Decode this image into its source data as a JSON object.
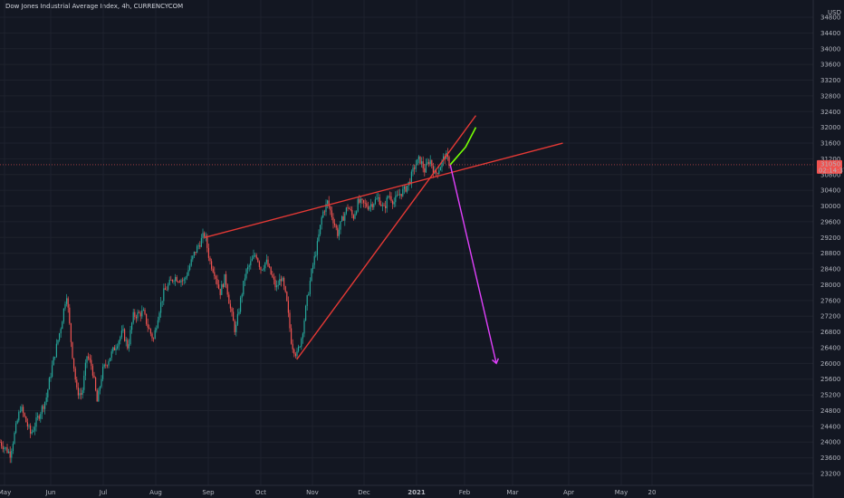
{
  "chart_data": {
    "type": "candlestick",
    "title": "Dow Jones Industrial Average Index, 4h, CURRENCYCOM",
    "currency": "USD",
    "y_ticks": [
      23200,
      23600,
      24000,
      24400,
      24800,
      25200,
      25600,
      26000,
      26400,
      26800,
      27200,
      27600,
      28000,
      28400,
      28800,
      29200,
      29600,
      30000,
      30400,
      30800,
      31200,
      31600,
      32000,
      32400,
      32800,
      33200,
      33600,
      34000,
      34400,
      34800
    ],
    "y_tick_labels": [
      "23200",
      "23600",
      "24000",
      "24400",
      "24800",
      "25200",
      "25600",
      "26000",
      "26400",
      "26800",
      "27200",
      "27600",
      "28000",
      "28400",
      "28800",
      "29200",
      "29600",
      "30000",
      "30400",
      "30800",
      "31200",
      "31600",
      "32000",
      "32400",
      "32800",
      "33200",
      "33600",
      "34000",
      "34400",
      "34800"
    ],
    "ylim": [
      23000,
      35000
    ],
    "x_ticks": [
      "May",
      "Jun",
      "Jul",
      "Aug",
      "Sep",
      "Oct",
      "Nov",
      "Dec",
      "2021",
      "Feb",
      "Mar",
      "Apr",
      "May",
      "20"
    ],
    "x_tick_bold": [
      false,
      false,
      false,
      false,
      false,
      false,
      false,
      false,
      true,
      false,
      false,
      false,
      false,
      false
    ],
    "current_price": "31050",
    "countdown": "02:14:37",
    "price_path": [
      [
        0,
        24000
      ],
      [
        2,
        23700
      ],
      [
        4,
        24900
      ],
      [
        6,
        24200
      ],
      [
        8,
        24800
      ],
      [
        9,
        25100
      ],
      [
        10,
        25800
      ],
      [
        12,
        27000
      ],
      [
        13,
        27800
      ],
      [
        14,
        26400
      ],
      [
        15,
        25300
      ],
      [
        16,
        25200
      ],
      [
        17,
        26200
      ],
      [
        18,
        25900
      ],
      [
        19,
        25000
      ],
      [
        20,
        25800
      ],
      [
        22,
        26300
      ],
      [
        24,
        26800
      ],
      [
        25,
        26400
      ],
      [
        26,
        27200
      ],
      [
        28,
        27300
      ],
      [
        29,
        26900
      ],
      [
        30,
        26600
      ],
      [
        31,
        27300
      ],
      [
        32,
        27800
      ],
      [
        34,
        28200
      ],
      [
        36,
        28100
      ],
      [
        38,
        28800
      ],
      [
        40,
        29300
      ],
      [
        41,
        28600
      ],
      [
        42,
        28300
      ],
      [
        43,
        27800
      ],
      [
        44,
        28200
      ],
      [
        45,
        27400
      ],
      [
        46,
        26800
      ],
      [
        47,
        27600
      ],
      [
        48,
        28300
      ],
      [
        50,
        28800
      ],
      [
        51,
        28400
      ],
      [
        52,
        28600
      ],
      [
        54,
        27900
      ],
      [
        55,
        28200
      ],
      [
        56,
        27600
      ],
      [
        57,
        26500
      ],
      [
        58,
        26200
      ],
      [
        59,
        26700
      ],
      [
        60,
        27600
      ],
      [
        61,
        28400
      ],
      [
        62,
        29000
      ],
      [
        63,
        29800
      ],
      [
        64,
        30100
      ],
      [
        65,
        29700
      ],
      [
        66,
        29300
      ],
      [
        67,
        29700
      ],
      [
        68,
        30000
      ],
      [
        69,
        29700
      ],
      [
        70,
        30100
      ],
      [
        72,
        30000
      ],
      [
        74,
        30200
      ],
      [
        75,
        29900
      ],
      [
        76,
        30300
      ],
      [
        77,
        30100
      ],
      [
        78,
        30300
      ],
      [
        79,
        30400
      ],
      [
        80,
        30600
      ],
      [
        81,
        31000
      ],
      [
        82,
        31200
      ],
      [
        83,
        30900
      ],
      [
        84,
        31200
      ],
      [
        85,
        30800
      ],
      [
        86,
        31000
      ],
      [
        87,
        31300
      ],
      [
        88,
        31050
      ]
    ],
    "drawings": [
      {
        "type": "trendline",
        "color": "#e53935",
        "p1": [
          40,
          29200
        ],
        "p2": [
          110,
          31600
        ]
      },
      {
        "type": "trendline",
        "color": "#e53935",
        "p1": [
          58,
          26100
        ],
        "p2": [
          93,
          32300
        ]
      },
      {
        "type": "path",
        "color": "#76ff03",
        "points": [
          [
            88,
            31050
          ],
          [
            89,
            31200
          ],
          [
            90,
            31350
          ],
          [
            91,
            31500
          ],
          [
            92,
            31750
          ],
          [
            93,
            32000
          ]
        ]
      },
      {
        "type": "arrow",
        "color": "#e040fb",
        "p1": [
          88,
          31050
        ],
        "p2": [
          97,
          26000
        ]
      }
    ]
  }
}
